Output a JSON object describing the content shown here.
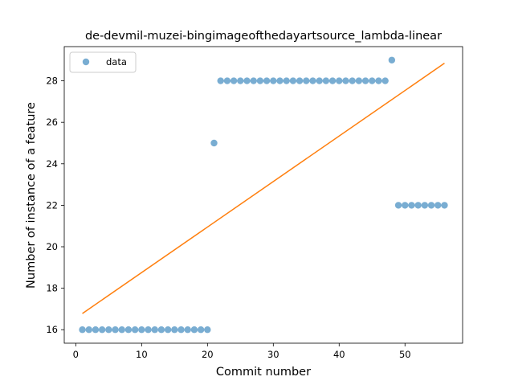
{
  "chart_data": {
    "type": "scatter",
    "title": "de-devmil-muzei-bingimageofthedayartsource_lambda-linear",
    "xlabel": "Commit number",
    "ylabel": "Number of instance of a feature",
    "xlim": [
      -1.75,
      58.75
    ],
    "ylim": [
      15.35,
      29.65
    ],
    "xticks": [
      0,
      10,
      20,
      30,
      40,
      50
    ],
    "yticks": [
      16,
      18,
      20,
      22,
      24,
      26,
      28
    ],
    "legend": {
      "position": "top-left",
      "entries": [
        "data"
      ]
    },
    "grid": false,
    "colors": {
      "points": "#1f77b4",
      "fit_line": "#ff7f0e"
    },
    "series": [
      {
        "name": "data",
        "kind": "scatter",
        "points": [
          [
            1,
            16
          ],
          [
            2,
            16
          ],
          [
            3,
            16
          ],
          [
            4,
            16
          ],
          [
            5,
            16
          ],
          [
            6,
            16
          ],
          [
            7,
            16
          ],
          [
            8,
            16
          ],
          [
            9,
            16
          ],
          [
            10,
            16
          ],
          [
            11,
            16
          ],
          [
            12,
            16
          ],
          [
            13,
            16
          ],
          [
            14,
            16
          ],
          [
            15,
            16
          ],
          [
            16,
            16
          ],
          [
            17,
            16
          ],
          [
            18,
            16
          ],
          [
            19,
            16
          ],
          [
            20,
            16
          ],
          [
            21,
            25
          ],
          [
            22,
            28
          ],
          [
            23,
            28
          ],
          [
            24,
            28
          ],
          [
            25,
            28
          ],
          [
            26,
            28
          ],
          [
            27,
            28
          ],
          [
            28,
            28
          ],
          [
            29,
            28
          ],
          [
            30,
            28
          ],
          [
            31,
            28
          ],
          [
            32,
            28
          ],
          [
            33,
            28
          ],
          [
            34,
            28
          ],
          [
            35,
            28
          ],
          [
            36,
            28
          ],
          [
            37,
            28
          ],
          [
            38,
            28
          ],
          [
            39,
            28
          ],
          [
            40,
            28
          ],
          [
            41,
            28
          ],
          [
            42,
            28
          ],
          [
            43,
            28
          ],
          [
            44,
            28
          ],
          [
            45,
            28
          ],
          [
            46,
            28
          ],
          [
            47,
            28
          ],
          [
            48,
            29
          ],
          [
            49,
            22
          ],
          [
            50,
            22
          ],
          [
            51,
            22
          ],
          [
            52,
            22
          ],
          [
            53,
            22
          ],
          [
            54,
            22
          ],
          [
            55,
            22
          ],
          [
            56,
            22
          ]
        ]
      },
      {
        "kind": "line",
        "points": [
          [
            1,
            16.78
          ],
          [
            56,
            28.85
          ]
        ]
      }
    ]
  }
}
